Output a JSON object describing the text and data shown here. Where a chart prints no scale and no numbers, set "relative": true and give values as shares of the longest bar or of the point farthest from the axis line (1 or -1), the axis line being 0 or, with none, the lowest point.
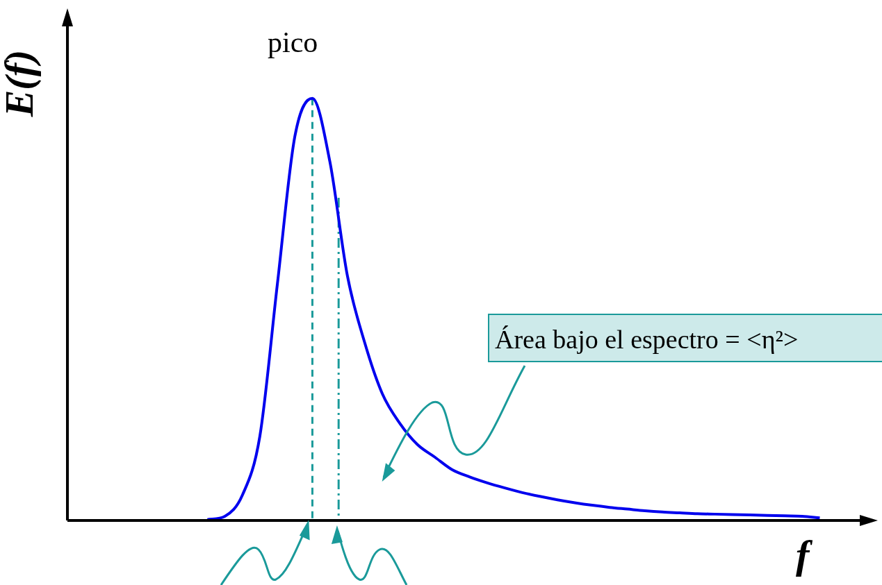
{
  "chart_data": {
    "type": "line",
    "relative": true,
    "xlabel": "f",
    "ylabel": "E(f)",
    "categories": [
      null,
      null,
      null,
      null,
      null,
      null,
      null,
      null,
      null,
      null,
      null,
      null,
      null,
      null,
      null,
      null,
      null,
      null,
      null,
      null,
      null,
      null,
      null,
      null,
      null,
      null,
      null,
      null,
      null,
      null,
      null,
      null,
      null,
      null,
      null,
      null,
      null,
      null,
      null,
      null,
      null,
      null,
      null,
      null,
      null,
      null,
      null
    ],
    "series": [
      {
        "color": "#0000ee",
        "values": [
          null,
          null,
          null,
          null,
          null,
          null,
          null,
          null,
          0.002,
          0.01,
          0.06,
          0.2,
          0.56,
          0.91,
          1,
          0.85,
          0.58,
          0.42,
          0.3,
          0.23,
          0.18,
          0.15,
          0.12,
          0.103,
          0.089,
          0.077,
          0.066,
          0.057,
          0.049,
          0.042,
          0.036,
          0.031,
          0.027,
          0.023,
          0.02,
          0.018,
          0.016,
          0.015,
          0.014,
          0.013,
          0.012,
          0.011,
          0.01,
          0.006,
          null,
          null,
          null
        ]
      }
    ],
    "annotations": [
      "pico",
      "Área bajo el espectro = <η²>"
    ],
    "marker": "none",
    "line_style": "solid",
    "legend": false
  }
}
